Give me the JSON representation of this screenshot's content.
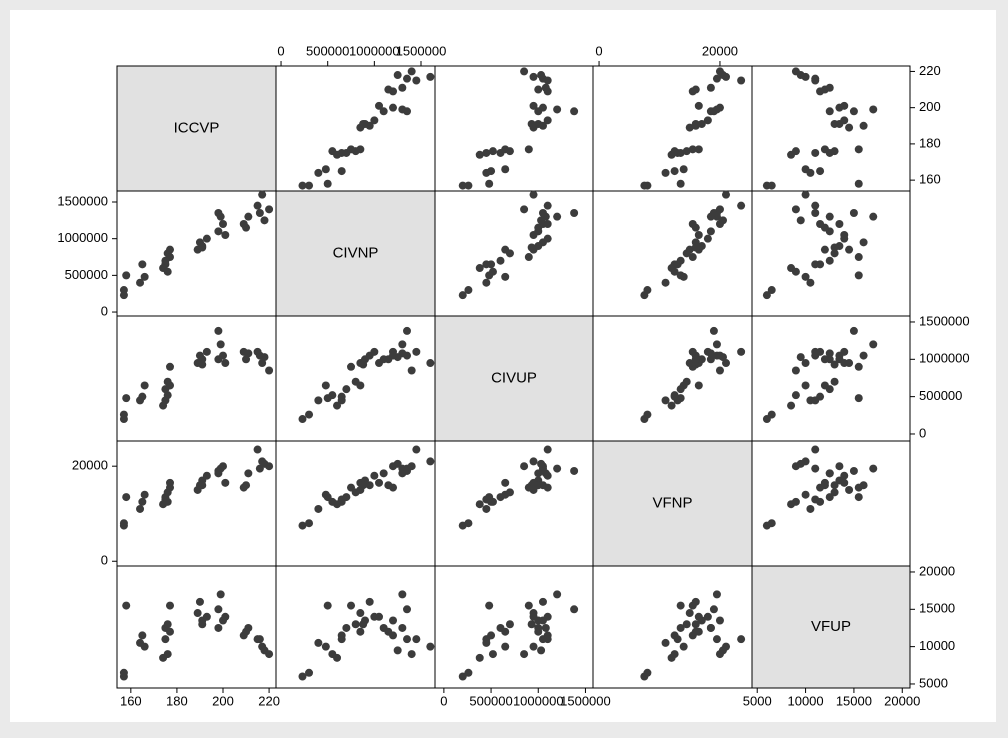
{
  "chart_data": {
    "type": "scatter",
    "point_color": "#3c3c3c",
    "diagonal_color": "#e1e1e1",
    "variables": [
      {
        "name": "ICCVP",
        "lim": [
          154,
          223
        ],
        "ticks": [
          160,
          180,
          200,
          220
        ],
        "values": [
          157,
          157,
          158,
          164,
          165,
          166,
          174,
          175,
          175,
          176,
          177,
          177,
          176,
          189,
          190,
          191,
          193,
          191,
          198,
          199,
          200,
          201,
          198,
          209,
          210,
          211,
          216,
          217,
          218,
          220,
          215
        ]
      },
      {
        "name": "CIVNP",
        "lim": [
          -54000,
          1650000
        ],
        "ticks": [
          0,
          500000,
          1000000,
          1500000
        ],
        "values": [
          230000,
          300000,
          500000,
          400000,
          650000,
          480000,
          600000,
          650000,
          700000,
          800000,
          750000,
          850000,
          550000,
          850000,
          950000,
          900000,
          1000000,
          880000,
          1100000,
          1300000,
          1200000,
          1050000,
          1350000,
          1200000,
          1150000,
          1300000,
          1350000,
          1600000,
          1250000,
          1400000,
          1450000
        ]
      },
      {
        "name": "CIVUP",
        "lim": [
          -94000,
          1580000
        ],
        "ticks": [
          0,
          500000,
          1000000,
          1500000
        ],
        "values": [
          200000,
          260000,
          480000,
          450000,
          500000,
          650000,
          380000,
          450000,
          600000,
          700000,
          900000,
          650000,
          520000,
          950000,
          1050000,
          1000000,
          1100000,
          930000,
          1000000,
          1200000,
          1050000,
          950000,
          1380000,
          1100000,
          1000000,
          1080000,
          1050000,
          950000,
          1030000,
          850000,
          1100000
        ]
      },
      {
        "name": "VFNP",
        "lim": [
          -1000,
          25300
        ],
        "ticks": [
          0,
          20000
        ],
        "values": [
          7500,
          8000,
          13500,
          11000,
          12500,
          14000,
          12000,
          13000,
          13500,
          14500,
          15500,
          16500,
          12500,
          15000,
          16000,
          17000,
          18000,
          16000,
          18500,
          19500,
          20000,
          16500,
          19000,
          15500,
          16000,
          18500,
          19500,
          21000,
          20500,
          20000,
          23500
        ]
      },
      {
        "name": "VFUP",
        "lim": [
          4460,
          20800
        ],
        "ticks": [
          5000,
          10000,
          15000,
          20000
        ],
        "values": [
          6000,
          6500,
          15500,
          10500,
          11500,
          10000,
          8500,
          11000,
          12500,
          13000,
          15500,
          12000,
          9000,
          14500,
          16000,
          13500,
          14000,
          13000,
          12500,
          17000,
          13500,
          14000,
          15000,
          11500,
          12000,
          12500,
          11000,
          10000,
          9500,
          9000,
          11000
        ]
      }
    ]
  }
}
